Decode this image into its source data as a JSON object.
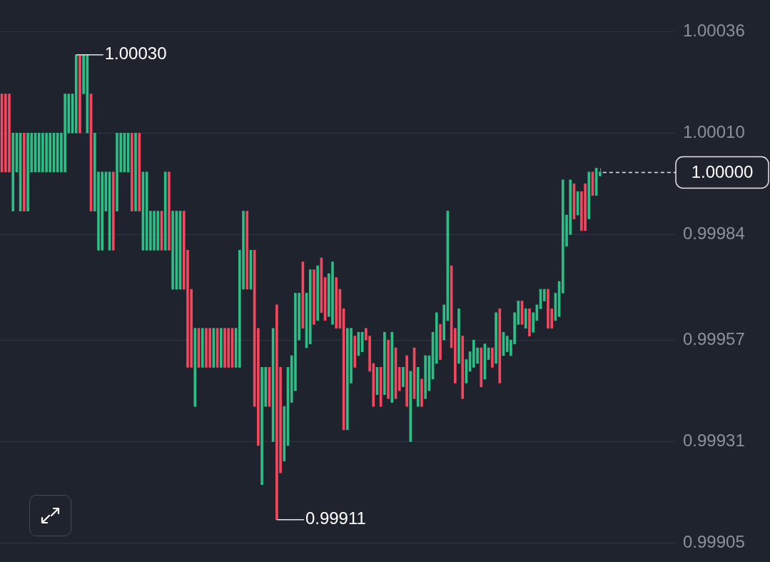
{
  "chart_data": {
    "type": "candlestick",
    "categories": [
      null,
      null,
      null,
      null,
      null,
      null,
      null,
      null,
      null,
      null,
      null,
      null,
      null,
      null,
      null,
      null,
      null,
      null,
      null,
      null,
      null,
      null,
      null,
      null,
      null,
      null,
      null,
      null,
      null,
      null,
      null,
      null,
      null,
      null,
      null,
      null,
      null,
      null,
      null,
      null,
      null,
      null,
      null,
      null,
      null,
      null,
      null,
      null,
      null,
      null,
      null,
      null,
      null,
      null,
      null,
      null,
      null,
      null,
      null,
      null,
      null,
      null,
      null,
      null,
      null,
      null,
      null,
      null,
      null,
      null,
      null,
      null,
      null,
      null,
      null,
      null,
      null,
      null,
      null,
      null,
      null,
      null,
      null,
      null,
      null,
      null,
      null,
      null,
      null,
      null,
      null,
      null,
      null,
      null,
      null,
      null,
      null,
      null,
      null,
      null,
      null,
      null,
      null,
      null,
      null,
      null,
      null,
      null,
      null,
      null,
      null,
      null,
      null,
      null,
      null,
      null,
      null,
      null,
      null,
      null,
      null,
      null,
      null,
      null,
      null,
      null,
      null,
      null,
      null,
      null,
      null,
      null,
      null,
      null,
      null,
      null,
      null,
      null,
      null,
      null,
      null,
      null,
      null,
      null,
      null,
      null,
      null,
      null,
      null,
      null,
      null,
      null,
      null,
      null,
      null,
      null,
      null,
      null,
      null,
      null,
      null,
      null
    ],
    "ohlc": [
      [
        1.0002,
        1.0002,
        1.0,
        1.0
      ],
      [
        1.0002,
        1.0002,
        1.0,
        1.0
      ],
      [
        1.0002,
        1.0002,
        1.0,
        1.0
      ],
      [
        0.9999,
        1.0001,
        0.9999,
        1.0001
      ],
      [
        1.0,
        1.0001,
        1.0,
        1.0001
      ],
      [
        0.9999,
        1.0001,
        0.9999,
        1.0001
      ],
      [
        1.0001,
        1.0001,
        0.9999,
        0.9999
      ],
      [
        0.9999,
        1.0001,
        0.9999,
        1.0001
      ],
      [
        1.0,
        1.0001,
        1.0,
        1.0001
      ],
      [
        1.0,
        1.0001,
        1.0,
        1.0001
      ],
      [
        1.0,
        1.0001,
        1.0,
        1.0001
      ],
      [
        1.0,
        1.0001,
        1.0,
        1.0001
      ],
      [
        1.0,
        1.0001,
        1.0,
        1.0001
      ],
      [
        1.0,
        1.0001,
        1.0,
        1.0001
      ],
      [
        1.0,
        1.0001,
        1.0,
        1.0001
      ],
      [
        1.0,
        1.0001,
        1.0,
        1.0001
      ],
      [
        1.0,
        1.0001,
        1.0,
        1.0001
      ],
      [
        1.0,
        1.0002,
        1.0,
        1.0002
      ],
      [
        1.0001,
        1.0002,
        1.0001,
        1.0002
      ],
      [
        1.0001,
        1.0002,
        1.0001,
        1.0002
      ],
      [
        1.0001,
        1.0003,
        1.0001,
        1.0003
      ],
      [
        1.0003,
        1.0003,
        1.0001,
        1.0001
      ],
      [
        1.0002,
        1.0003,
        1.0002,
        1.0003
      ],
      [
        1.0001,
        1.0003,
        1.0001,
        1.0003
      ],
      [
        1.0002,
        1.0002,
        0.9999,
        0.9999
      ],
      [
        0.9999,
        1.0001,
        0.9999,
        1.0001
      ],
      [
        0.9998,
        1.0,
        0.9998,
        1.0
      ],
      [
        0.9998,
        1.0,
        0.9998,
        1.0
      ],
      [
        0.9999,
        1.0,
        0.9999,
        1.0
      ],
      [
        0.9998,
        1.0,
        0.9998,
        1.0
      ],
      [
        1.0,
        1.0,
        0.9998,
        0.9998
      ],
      [
        0.9999,
        1.0001,
        0.9999,
        1.0001
      ],
      [
        1.0,
        1.0001,
        1.0,
        1.0001
      ],
      [
        1.0,
        1.0001,
        1.0,
        1.0001
      ],
      [
        1.0,
        1.0001,
        1.0,
        1.0001
      ],
      [
        1.0001,
        1.0001,
        0.9999,
        0.9999
      ],
      [
        0.9999,
        1.0001,
        0.9999,
        1.0001
      ],
      [
        1.0001,
        1.0001,
        0.9999,
        0.9999
      ],
      [
        0.9998,
        1.0,
        0.9998,
        1.0
      ],
      [
        0.9998,
        1.0,
        0.9998,
        1.0
      ],
      [
        0.9998,
        0.9999,
        0.9998,
        0.9999
      ],
      [
        0.9998,
        0.9999,
        0.9998,
        0.9999
      ],
      [
        0.9998,
        0.9999,
        0.9998,
        0.9999
      ],
      [
        0.9999,
        0.9999,
        0.9998,
        0.9998
      ],
      [
        0.9998,
        1.0,
        0.9998,
        1.0
      ],
      [
        1.0,
        1.0,
        0.9998,
        0.9998
      ],
      [
        0.9997,
        0.9999,
        0.9997,
        0.9999
      ],
      [
        0.9997,
        0.9999,
        0.9997,
        0.9999
      ],
      [
        0.9997,
        0.9999,
        0.9997,
        0.9999
      ],
      [
        0.9999,
        0.9999,
        0.9997,
        0.9997
      ],
      [
        0.9998,
        0.9998,
        0.9995,
        0.9995
      ],
      [
        0.9997,
        0.9997,
        0.9995,
        0.9995
      ],
      [
        0.9994,
        0.9996,
        0.9994,
        0.9996
      ],
      [
        0.9996,
        0.9996,
        0.9995,
        0.9995
      ],
      [
        0.9995,
        0.9996,
        0.9995,
        0.9996
      ],
      [
        0.9996,
        0.9996,
        0.9995,
        0.9995
      ],
      [
        0.9996,
        0.9996,
        0.9995,
        0.9995
      ],
      [
        0.9995,
        0.9996,
        0.9995,
        0.9996
      ],
      [
        0.9996,
        0.9996,
        0.9995,
        0.9995
      ],
      [
        0.9995,
        0.9996,
        0.9995,
        0.9996
      ],
      [
        0.9996,
        0.9996,
        0.9995,
        0.9995
      ],
      [
        0.9996,
        0.9996,
        0.9995,
        0.9995
      ],
      [
        0.9996,
        0.9996,
        0.9995,
        0.9995
      ],
      [
        0.9995,
        0.9996,
        0.9995,
        0.9996
      ],
      [
        0.9995,
        0.9998,
        0.9995,
        0.9998
      ],
      [
        0.9997,
        0.9999,
        0.9997,
        0.9999
      ],
      [
        0.9999,
        0.9999,
        0.9997,
        0.9997
      ],
      [
        0.9997,
        0.9998,
        0.9997,
        0.9998
      ],
      [
        0.9998,
        0.9998,
        0.9994,
        0.9994
      ],
      [
        0.9996,
        0.9996,
        0.9993,
        0.9993
      ],
      [
        0.9992,
        0.9995,
        0.9992,
        0.9995
      ],
      [
        0.9994,
        0.9995,
        0.9994,
        0.9995
      ],
      [
        0.9995,
        0.9995,
        0.9994,
        0.9994
      ],
      [
        0.99931,
        0.9996,
        0.99931,
        0.9996
      ],
      [
        0.99966,
        0.99966,
        0.99911,
        0.99911
      ],
      [
        0.9995,
        0.9995,
        0.99923,
        0.99923
      ],
      [
        0.99926,
        0.9994,
        0.99926,
        0.9994
      ],
      [
        0.9993,
        0.9995,
        0.9993,
        0.9995
      ],
      [
        0.99941,
        0.99953,
        0.99941,
        0.99953
      ],
      [
        0.99944,
        0.99969,
        0.99944,
        0.99969
      ],
      [
        0.99957,
        0.99969,
        0.99957,
        0.99969
      ],
      [
        0.99977,
        0.99977,
        0.9996,
        0.9996
      ],
      [
        0.99955,
        0.99969,
        0.99955,
        0.99969
      ],
      [
        0.99956,
        0.99975,
        0.99956,
        0.99975
      ],
      [
        0.99975,
        0.99975,
        0.99961,
        0.99961
      ],
      [
        0.99962,
        0.99976,
        0.99962,
        0.99976
      ],
      [
        0.99978,
        0.99978,
        0.99964,
        0.99964
      ],
      [
        0.99973,
        0.99973,
        0.99962,
        0.99962
      ],
      [
        0.99963,
        0.99974,
        0.99963,
        0.99974
      ],
      [
        0.99961,
        0.99977,
        0.99961,
        0.99977
      ],
      [
        0.99973,
        0.99973,
        0.9996,
        0.9996
      ],
      [
        0.9997,
        0.9997,
        0.9996,
        0.9996
      ],
      [
        0.99965,
        0.99965,
        0.99934,
        0.99934
      ],
      [
        0.99934,
        0.9996,
        0.99934,
        0.9996
      ],
      [
        0.99946,
        0.9996,
        0.99946,
        0.9996
      ],
      [
        0.99958,
        0.99958,
        0.9995,
        0.9995
      ],
      [
        0.99953,
        0.99959,
        0.99953,
        0.99959
      ],
      [
        0.99954,
        0.99959,
        0.99954,
        0.99959
      ],
      [
        0.9996,
        0.9996,
        0.99957,
        0.99957
      ],
      [
        0.99958,
        0.99958,
        0.99949,
        0.99949
      ],
      [
        0.99951,
        0.99951,
        0.9994,
        0.9994
      ],
      [
        0.99943,
        0.9995,
        0.99943,
        0.9995
      ],
      [
        0.9995,
        0.9995,
        0.9994,
        0.9994
      ],
      [
        0.99943,
        0.99959,
        0.99943,
        0.99959
      ],
      [
        0.99957,
        0.99957,
        0.99942,
        0.99942
      ],
      [
        0.99941,
        0.99959,
        0.99941,
        0.99959
      ],
      [
        0.99955,
        0.99955,
        0.99942,
        0.99942
      ],
      [
        0.9995,
        0.9995,
        0.99944,
        0.99944
      ],
      [
        0.99945,
        0.9995,
        0.99945,
        0.9995
      ],
      [
        0.99953,
        0.99953,
        0.9994,
        0.9994
      ],
      [
        0.99931,
        0.99949,
        0.99931,
        0.99949
      ],
      [
        0.99955,
        0.99955,
        0.99942,
        0.99942
      ],
      [
        0.9994,
        0.9995,
        0.9994,
        0.9995
      ],
      [
        0.99947,
        0.99947,
        0.9994,
        0.9994
      ],
      [
        0.99942,
        0.99953,
        0.99942,
        0.99953
      ],
      [
        0.99944,
        0.99953,
        0.99944,
        0.99953
      ],
      [
        0.99947,
        0.99959,
        0.99947,
        0.99959
      ],
      [
        0.99951,
        0.99964,
        0.99951,
        0.99964
      ],
      [
        0.99961,
        0.99961,
        0.99952,
        0.99952
      ],
      [
        0.99957,
        0.99966,
        0.99957,
        0.99966
      ],
      [
        0.99962,
        0.9999,
        0.99962,
        0.9999
      ],
      [
        0.99976,
        0.99976,
        0.99955,
        0.99955
      ],
      [
        0.9996,
        0.9996,
        0.99946,
        0.99946
      ],
      [
        0.99951,
        0.99965,
        0.99951,
        0.99965
      ],
      [
        0.99958,
        0.99958,
        0.99942,
        0.99942
      ],
      [
        0.99946,
        0.99952,
        0.99946,
        0.99952
      ],
      [
        0.99949,
        0.99954,
        0.99949,
        0.99954
      ],
      [
        0.9995,
        0.99957,
        0.9995,
        0.99957
      ],
      [
        0.99951,
        0.99955,
        0.99951,
        0.99955
      ],
      [
        0.99955,
        0.99955,
        0.99945,
        0.99945
      ],
      [
        0.99947,
        0.99956,
        0.99947,
        0.99956
      ],
      [
        0.99952,
        0.99955,
        0.99952,
        0.99955
      ],
      [
        0.99955,
        0.99955,
        0.9995,
        0.9995
      ],
      [
        0.99951,
        0.99964,
        0.99951,
        0.99964
      ],
      [
        0.99965,
        0.99965,
        0.99946,
        0.99946
      ],
      [
        0.99953,
        0.99959,
        0.99953,
        0.99959
      ],
      [
        0.99954,
        0.99958,
        0.99954,
        0.99958
      ],
      [
        0.99953,
        0.99957,
        0.99953,
        0.99957
      ],
      [
        0.99956,
        0.99964,
        0.99956,
        0.99964
      ],
      [
        0.99961,
        0.99967,
        0.99961,
        0.99967
      ],
      [
        0.99967,
        0.99967,
        0.99961,
        0.99961
      ],
      [
        0.9996,
        0.99965,
        0.9996,
        0.99965
      ],
      [
        0.99965,
        0.99965,
        0.99958,
        0.99958
      ],
      [
        0.99959,
        0.99964,
        0.99959,
        0.99964
      ],
      [
        0.99962,
        0.99966,
        0.99962,
        0.99966
      ],
      [
        0.99965,
        0.9997,
        0.99965,
        0.9997
      ],
      [
        0.99967,
        0.9997,
        0.99967,
        0.9997
      ],
      [
        0.9997,
        0.9997,
        0.9996,
        0.9996
      ],
      [
        0.99965,
        0.99965,
        0.9996,
        0.9996
      ],
      [
        0.99962,
        0.99969,
        0.99962,
        0.99969
      ],
      [
        0.99963,
        0.99972,
        0.99963,
        0.99972
      ],
      [
        0.99969,
        0.99998,
        0.99969,
        0.99998
      ],
      [
        0.99981,
        0.99989,
        0.99981,
        0.99989
      ],
      [
        0.99984,
        0.99998,
        0.99984,
        0.99998
      ],
      [
        0.99997,
        0.99997,
        0.99988,
        0.99988
      ],
      [
        0.99989,
        0.99995,
        0.99989,
        0.99995
      ],
      [
        0.99995,
        0.99995,
        0.99985,
        0.99985
      ],
      [
        0.99997,
        0.99997,
        0.99985,
        0.99985
      ],
      [
        0.99988,
        1.0,
        0.99988,
        1.0
      ],
      [
        1.0,
        1.0,
        0.99994,
        0.99994
      ],
      [
        0.99994,
        1.00001,
        0.99994,
        1.00001
      ],
      [
        0.99999,
        1.00001,
        0.99999,
        1.0
      ]
    ],
    "colors": [
      "#f6465d",
      "#f6465d",
      "#f6465d",
      "#2ebd85",
      "#2ebd85",
      "#2ebd85",
      "#f6465d",
      "#2ebd85",
      "#2ebd85",
      "#2ebd85",
      "#2ebd85",
      "#2ebd85",
      "#2ebd85",
      "#2ebd85",
      "#2ebd85",
      "#2ebd85",
      "#2ebd85",
      "#2ebd85",
      "#2ebd85",
      "#2ebd85",
      "#2ebd85",
      "#f6465d",
      "#2ebd85",
      "#2ebd85",
      "#f6465d",
      "#2ebd85",
      "#2ebd85",
      "#2ebd85",
      "#2ebd85",
      "#2ebd85",
      "#f6465d",
      "#2ebd85",
      "#2ebd85",
      "#2ebd85",
      "#2ebd85",
      "#f6465d",
      "#2ebd85",
      "#f6465d",
      "#2ebd85",
      "#2ebd85",
      "#2ebd85",
      "#2ebd85",
      "#2ebd85",
      "#f6465d",
      "#2ebd85",
      "#f6465d",
      "#2ebd85",
      "#2ebd85",
      "#2ebd85",
      "#f6465d",
      "#f6465d",
      "#f6465d",
      "#2ebd85",
      "#f6465d",
      "#2ebd85",
      "#f6465d",
      "#f6465d",
      "#2ebd85",
      "#f6465d",
      "#2ebd85",
      "#f6465d",
      "#f6465d",
      "#f6465d",
      "#2ebd85",
      "#2ebd85",
      "#2ebd85",
      "#f6465d",
      "#2ebd85",
      "#f6465d",
      "#f6465d",
      "#2ebd85",
      "#2ebd85",
      "#f6465d",
      "#2ebd85",
      "#f6465d",
      "#f6465d",
      "#2ebd85",
      "#2ebd85",
      "#2ebd85",
      "#2ebd85",
      "#2ebd85",
      "#f6465d",
      "#2ebd85",
      "#2ebd85",
      "#f6465d",
      "#2ebd85",
      "#f6465d",
      "#f6465d",
      "#2ebd85",
      "#2ebd85",
      "#f6465d",
      "#f6465d",
      "#f6465d",
      "#2ebd85",
      "#2ebd85",
      "#f6465d",
      "#2ebd85",
      "#2ebd85",
      "#f6465d",
      "#f6465d",
      "#f6465d",
      "#2ebd85",
      "#f6465d",
      "#2ebd85",
      "#f6465d",
      "#2ebd85",
      "#f6465d",
      "#f6465d",
      "#2ebd85",
      "#f6465d",
      "#2ebd85",
      "#f6465d",
      "#2ebd85",
      "#f6465d",
      "#2ebd85",
      "#2ebd85",
      "#2ebd85",
      "#2ebd85",
      "#f6465d",
      "#2ebd85",
      "#2ebd85",
      "#f6465d",
      "#f6465d",
      "#2ebd85",
      "#f6465d",
      "#2ebd85",
      "#2ebd85",
      "#2ebd85",
      "#2ebd85",
      "#f6465d",
      "#2ebd85",
      "#2ebd85",
      "#f6465d",
      "#2ebd85",
      "#f6465d",
      "#2ebd85",
      "#2ebd85",
      "#2ebd85",
      "#2ebd85",
      "#2ebd85",
      "#f6465d",
      "#2ebd85",
      "#f6465d",
      "#2ebd85",
      "#2ebd85",
      "#2ebd85",
      "#2ebd85",
      "#f6465d",
      "#f6465d",
      "#2ebd85",
      "#2ebd85",
      "#2ebd85",
      "#2ebd85",
      "#2ebd85",
      "#f6465d",
      "#2ebd85",
      "#f6465d",
      "#f6465d",
      "#2ebd85",
      "#f6465d",
      "#2ebd85",
      "#2ebd85"
    ],
    "ylim": [
      0.99905,
      1.00036
    ],
    "yticks": [
      0.99905,
      0.99931,
      0.99957,
      0.99984,
      {
        "value": 1.0001,
        "label": "1.00010"
      },
      1.00036
    ],
    "tick_labels": "y",
    "grid": "y",
    "legend": false,
    "ref_lines": [
      {
        "axis": "y",
        "value": 1.0,
        "label": "1.00000",
        "line_style": "dashed"
      }
    ],
    "annotations": [
      "1.00030",
      "0.99911"
    ]
  }
}
